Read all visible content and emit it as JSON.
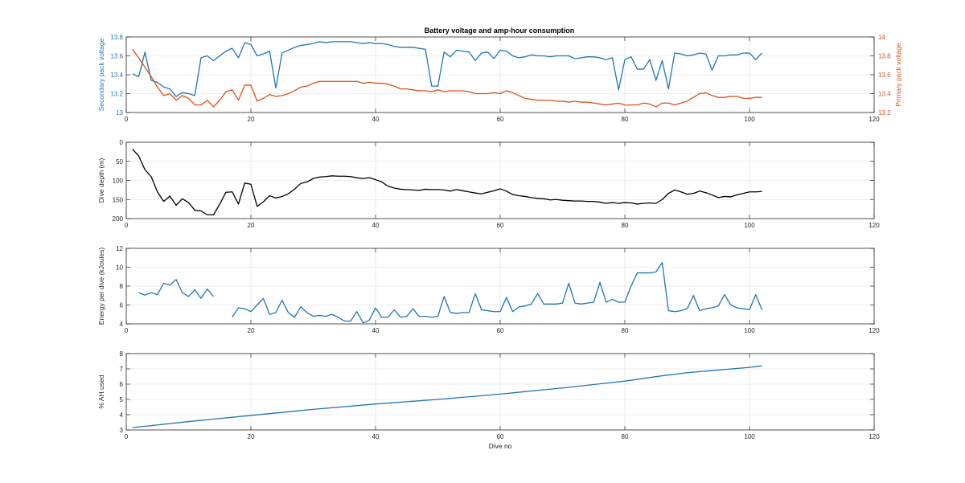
{
  "figure": {
    "title": "Battery voltage and amp-hour consumption"
  },
  "colors": {
    "blue": "#1f77b4",
    "orange": "#d95319",
    "black": "#000000",
    "axis": "#262626",
    "grid": "#dcdcdc"
  },
  "chart_data": [
    {
      "type": "line",
      "title": "Battery voltage and amp-hour consumption",
      "xlabel": "",
      "ylabel": "Secondary pack voltage",
      "ylabel_right": "Primary pack voltage",
      "xlim": [
        0,
        120
      ],
      "ylim": [
        13,
        13.8
      ],
      "ylim_right": [
        13.2,
        14
      ],
      "xticks": [
        0,
        20,
        40,
        60,
        80,
        100,
        120
      ],
      "yticks": [
        13,
        13.2,
        13.4,
        13.6,
        13.8
      ],
      "yticks_right": [
        13.2,
        13.4,
        13.6,
        13.8,
        14
      ],
      "grid": true,
      "series": [
        {
          "axis": "left",
          "color": "#1f77b4",
          "x": [
            1,
            2,
            3,
            4,
            5,
            6,
            7,
            8,
            9,
            10,
            11,
            12,
            13,
            14,
            15,
            16,
            17,
            18,
            19,
            20,
            21,
            22,
            23,
            24,
            25,
            26,
            27,
            28,
            29,
            30,
            31,
            32,
            33,
            34,
            35,
            36,
            37,
            38,
            39,
            40,
            41,
            42,
            43,
            44,
            45,
            46,
            47,
            48,
            49,
            50,
            51,
            52,
            53,
            54,
            55,
            56,
            57,
            58,
            59,
            60,
            61,
            62,
            63,
            64,
            65,
            66,
            67,
            68,
            69,
            70,
            71,
            72,
            73,
            74,
            75,
            76,
            77,
            78,
            79,
            80,
            81,
            82,
            83,
            84,
            85,
            86,
            87,
            88,
            89,
            90,
            91,
            92,
            93,
            94,
            95,
            96,
            97,
            98,
            99,
            100,
            101,
            102
          ],
          "y": [
            13.41,
            13.38,
            13.64,
            13.34,
            13.32,
            13.27,
            13.25,
            13.17,
            13.21,
            13.2,
            13.18,
            13.58,
            13.6,
            13.55,
            13.6,
            13.65,
            13.68,
            13.58,
            13.74,
            13.72,
            13.6,
            13.62,
            13.65,
            13.26,
            13.63,
            13.66,
            13.69,
            13.71,
            13.72,
            13.73,
            13.75,
            13.74,
            13.75,
            13.75,
            13.75,
            13.75,
            13.74,
            13.73,
            13.74,
            13.73,
            13.73,
            13.72,
            13.7,
            13.69,
            13.69,
            13.69,
            13.68,
            13.67,
            13.28,
            13.28,
            13.64,
            13.59,
            13.66,
            13.65,
            13.64,
            13.55,
            13.63,
            13.64,
            13.57,
            13.66,
            13.65,
            13.6,
            13.58,
            13.59,
            13.61,
            13.6,
            13.6,
            13.59,
            13.6,
            13.6,
            13.6,
            13.57,
            13.58,
            13.59,
            13.59,
            13.58,
            13.56,
            13.58,
            13.24,
            13.56,
            13.59,
            13.46,
            13.46,
            13.56,
            13.34,
            13.55,
            13.25,
            13.63,
            13.62,
            13.6,
            13.61,
            13.63,
            13.62,
            13.45,
            13.6,
            13.6,
            13.61,
            13.61,
            13.63,
            13.63,
            13.56,
            13.63
          ]
        },
        {
          "axis": "right",
          "color": "#d95319",
          "x": [
            1,
            2,
            3,
            4,
            5,
            6,
            7,
            8,
            9,
            10,
            11,
            12,
            13,
            14,
            15,
            16,
            17,
            18,
            19,
            20,
            21,
            22,
            23,
            24,
            25,
            26,
            27,
            28,
            29,
            30,
            31,
            32,
            33,
            34,
            35,
            36,
            37,
            38,
            39,
            40,
            41,
            42,
            43,
            44,
            45,
            46,
            47,
            48,
            49,
            50,
            51,
            52,
            53,
            54,
            55,
            56,
            57,
            58,
            59,
            60,
            61,
            62,
            63,
            64,
            65,
            66,
            67,
            68,
            69,
            70,
            71,
            72,
            73,
            74,
            75,
            76,
            77,
            78,
            79,
            80,
            81,
            82,
            83,
            84,
            85,
            86,
            87,
            88,
            89,
            90,
            91,
            92,
            93,
            94,
            95,
            96,
            97,
            98,
            99,
            100,
            101,
            102
          ],
          "y": [
            13.87,
            13.78,
            13.68,
            13.58,
            13.47,
            13.38,
            13.4,
            13.33,
            13.38,
            13.35,
            13.28,
            13.28,
            13.33,
            13.26,
            13.33,
            13.42,
            13.44,
            13.33,
            13.49,
            13.49,
            13.32,
            13.35,
            13.39,
            13.37,
            13.38,
            13.4,
            13.43,
            13.47,
            13.48,
            13.51,
            13.53,
            13.53,
            13.53,
            13.53,
            13.53,
            13.53,
            13.53,
            13.51,
            13.52,
            13.51,
            13.51,
            13.5,
            13.48,
            13.45,
            13.45,
            13.44,
            13.43,
            13.43,
            13.42,
            13.44,
            13.42,
            13.43,
            13.43,
            13.43,
            13.42,
            13.4,
            13.4,
            13.4,
            13.41,
            13.4,
            13.43,
            13.41,
            13.38,
            13.35,
            13.34,
            13.33,
            13.33,
            13.33,
            13.32,
            13.32,
            13.31,
            13.32,
            13.31,
            13.31,
            13.3,
            13.29,
            13.28,
            13.29,
            13.3,
            13.28,
            13.28,
            13.28,
            13.3,
            13.29,
            13.26,
            13.3,
            13.3,
            13.28,
            13.3,
            13.32,
            13.36,
            13.4,
            13.41,
            13.38,
            13.36,
            13.36,
            13.37,
            13.37,
            13.35,
            13.35,
            13.36,
            13.36
          ]
        }
      ]
    },
    {
      "type": "line",
      "title": "",
      "xlabel": "",
      "ylabel": "Dive depth (m)",
      "xlim": [
        0,
        120
      ],
      "ylim": [
        0,
        200
      ],
      "y_reversed": true,
      "xticks": [
        0,
        20,
        40,
        60,
        80,
        100,
        120
      ],
      "yticks": [
        0,
        50,
        100,
        150,
        200
      ],
      "grid": true,
      "series": [
        {
          "color": "#000000",
          "x": [
            1,
            2,
            3,
            4,
            5,
            6,
            7,
            8,
            9,
            10,
            11,
            12,
            13,
            14,
            15,
            16,
            17,
            18,
            19,
            20,
            21,
            22,
            23,
            24,
            25,
            26,
            27,
            28,
            29,
            30,
            31,
            32,
            33,
            34,
            35,
            36,
            37,
            38,
            39,
            40,
            41,
            42,
            43,
            44,
            45,
            46,
            47,
            48,
            49,
            50,
            51,
            52,
            53,
            54,
            55,
            56,
            57,
            58,
            59,
            60,
            61,
            62,
            63,
            64,
            65,
            66,
            67,
            68,
            69,
            70,
            71,
            72,
            73,
            74,
            75,
            76,
            77,
            78,
            79,
            80,
            81,
            82,
            83,
            84,
            85,
            86,
            87,
            88,
            89,
            90,
            91,
            92,
            93,
            94,
            95,
            96,
            97,
            98,
            99,
            100,
            101,
            102
          ],
          "y": [
            18,
            36,
            72,
            90,
            130,
            155,
            141,
            165,
            148,
            158,
            178,
            180,
            190,
            190,
            162,
            131,
            130,
            162,
            107,
            110,
            168,
            156,
            140,
            146,
            142,
            135,
            123,
            108,
            104,
            95,
            91,
            90,
            88,
            89,
            89,
            90,
            93,
            95,
            93,
            98,
            104,
            115,
            120,
            123,
            124,
            125,
            126,
            123,
            124,
            124,
            125,
            128,
            124,
            127,
            130,
            133,
            135,
            131,
            127,
            122,
            128,
            137,
            140,
            142,
            145,
            147,
            148,
            151,
            150,
            152,
            153,
            154,
            154,
            155,
            155,
            157,
            160,
            158,
            160,
            158,
            159,
            162,
            160,
            159,
            160,
            150,
            134,
            125,
            130,
            136,
            134,
            128,
            132,
            138,
            145,
            142,
            143,
            138,
            134,
            130,
            130,
            129
          ]
        }
      ]
    },
    {
      "type": "line",
      "title": "",
      "xlabel": "",
      "ylabel": "Energy per dive (kJoules)",
      "xlim": [
        0,
        120
      ],
      "ylim": [
        4,
        12
      ],
      "xticks": [
        0,
        20,
        40,
        60,
        80,
        100,
        120
      ],
      "yticks": [
        4,
        6,
        8,
        10,
        12
      ],
      "grid": true,
      "series": [
        {
          "color": "#1f77b4",
          "segments": [
            {
              "x": [
                2,
                3,
                4,
                5,
                6,
                7,
                8,
                9,
                10,
                11,
                12,
                13,
                14
              ],
              "y": [
                7.3,
                7.05,
                7.3,
                7.1,
                8.3,
                8.1,
                8.7,
                7.3,
                6.9,
                7.6,
                6.7,
                7.7,
                6.9
              ]
            },
            {
              "x": [
                17,
                18,
                19,
                20,
                21,
                22,
                23,
                24,
                25,
                26,
                27,
                28,
                29,
                30,
                31,
                32,
                33,
                34,
                35,
                36,
                37,
                38,
                39,
                40,
                41,
                42,
                43,
                44,
                45,
                46,
                47,
                48,
                49,
                50,
                51,
                52,
                53,
                54,
                55,
                56,
                57,
                58,
                59,
                60,
                61,
                62,
                63,
                64,
                65,
                66,
                67,
                68,
                69,
                70,
                71,
                72,
                73,
                74,
                75,
                76,
                77,
                78,
                79,
                80,
                81,
                82,
                83,
                84,
                85,
                86,
                87,
                88,
                89,
                90,
                91,
                92,
                93,
                94,
                95,
                96,
                97,
                98,
                99,
                100,
                101,
                102
              ],
              "y": [
                4.7,
                5.7,
                5.6,
                5.3,
                6.0,
                6.7,
                5.0,
                5.2,
                6.5,
                5.2,
                4.7,
                5.8,
                5.2,
                4.8,
                4.9,
                4.8,
                5.0,
                4.7,
                4.3,
                4.3,
                5.3,
                4.1,
                4.4,
                5.7,
                4.7,
                4.7,
                5.5,
                4.7,
                4.8,
                5.6,
                4.8,
                4.8,
                4.7,
                4.8,
                6.9,
                5.2,
                5.1,
                5.2,
                5.2,
                7.2,
                5.5,
                5.4,
                5.3,
                5.3,
                6.8,
                5.3,
                5.8,
                5.9,
                6.1,
                7.2,
                6.1,
                6.1,
                6.1,
                6.2,
                8.3,
                6.2,
                6.1,
                6.2,
                6.3,
                8.4,
                6.3,
                6.6,
                6.3,
                6.3,
                8.0,
                9.4,
                9.4,
                9.4,
                9.5,
                10.5,
                5.4,
                5.3,
                5.4,
                5.6,
                7.0,
                5.4,
                5.6,
                5.7,
                5.9,
                7.1,
                6.0,
                5.7,
                5.6,
                5.5,
                7.1,
                5.5
              ]
            }
          ]
        }
      ]
    },
    {
      "type": "line",
      "title": "",
      "xlabel": "Dive no",
      "ylabel": "% AH used",
      "xlim": [
        0,
        120
      ],
      "ylim": [
        3,
        8
      ],
      "xticks": [
        0,
        20,
        40,
        60,
        80,
        100,
        120
      ],
      "yticks": [
        3,
        4,
        5,
        6,
        7,
        8
      ],
      "grid": true,
      "series": [
        {
          "color": "#1f77b4",
          "x": [
            1,
            10,
            20,
            30,
            40,
            50,
            60,
            70,
            80,
            86,
            90,
            100,
            102
          ],
          "y": [
            3.15,
            3.55,
            3.95,
            4.35,
            4.7,
            5.0,
            5.35,
            5.75,
            6.2,
            6.55,
            6.75,
            7.1,
            7.2
          ]
        }
      ]
    }
  ]
}
